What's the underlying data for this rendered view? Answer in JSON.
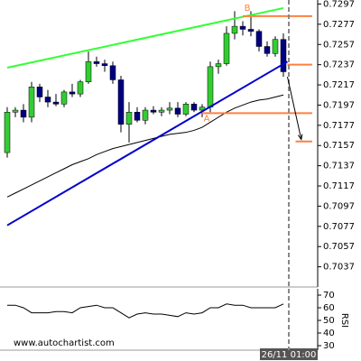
{
  "chart_data": {
    "type": "candlestick",
    "watermark": "www.autochartist.com",
    "x_label": "26/11 01:00",
    "up_color": "#33cc33",
    "down_color": "#000080",
    "open": [
      0.715,
      0.719,
      0.7192,
      0.7185,
      0.7215,
      0.7205,
      0.72,
      0.7198,
      0.721,
      0.7208,
      0.722,
      0.724,
      0.7238,
      0.7236,
      0.7222,
      0.7178,
      0.719,
      0.7182,
      0.7192,
      0.719,
      0.7192,
      0.7194,
      0.7188,
      0.7198,
      0.7192,
      0.7195,
      0.7235,
      0.7238,
      0.7268,
      0.7275,
      0.7272,
      0.727,
      0.7255,
      0.7248,
      0.7262
    ],
    "high": [
      0.7195,
      0.7195,
      0.7198,
      0.722,
      0.7218,
      0.7212,
      0.7208,
      0.7212,
      0.7218,
      0.7222,
      0.725,
      0.7245,
      0.7242,
      0.724,
      0.7226,
      0.72,
      0.7195,
      0.7195,
      0.7196,
      0.7195,
      0.72,
      0.72,
      0.72,
      0.72,
      0.7198,
      0.724,
      0.7242,
      0.7275,
      0.729,
      0.728,
      0.729,
      0.7272,
      0.726,
      0.7265,
      0.7268
    ],
    "low": [
      0.7145,
      0.7185,
      0.718,
      0.718,
      0.72,
      0.7195,
      0.7196,
      0.7195,
      0.7205,
      0.7205,
      0.7218,
      0.7235,
      0.723,
      0.7218,
      0.717,
      0.716,
      0.718,
      0.7178,
      0.7188,
      0.7186,
      0.7188,
      0.7185,
      0.7186,
      0.719,
      0.7185,
      0.719,
      0.7228,
      0.7236,
      0.7262,
      0.7266,
      0.7265,
      0.725,
      0.7245,
      0.7245,
      0.7225
    ],
    "close": [
      0.719,
      0.7192,
      0.7185,
      0.7215,
      0.7205,
      0.72,
      0.7198,
      0.721,
      0.7208,
      0.722,
      0.724,
      0.7238,
      0.7236,
      0.7222,
      0.7178,
      0.719,
      0.7182,
      0.7192,
      0.719,
      0.7192,
      0.7194,
      0.7188,
      0.7198,
      0.7192,
      0.7195,
      0.7235,
      0.7238,
      0.7268,
      0.7275,
      0.7272,
      0.727,
      0.7255,
      0.7248,
      0.7262,
      0.723
    ],
    "ma": {
      "color": "#000000",
      "values": [
        0.7106,
        0.711,
        0.7114,
        0.7118,
        0.7122,
        0.7126,
        0.713,
        0.7134,
        0.7138,
        0.7141,
        0.7144,
        0.7148,
        0.7151,
        0.7154,
        0.7156,
        0.7158,
        0.716,
        0.7162,
        0.7164,
        0.7166,
        0.7168,
        0.7169,
        0.717,
        0.7172,
        0.7175,
        0.718,
        0.7185,
        0.719,
        0.7194,
        0.7197,
        0.72,
        0.7202,
        0.7203,
        0.7205,
        0.7207
      ]
    },
    "trend_lines": [
      {
        "color": "#33ff33",
        "x": [
          0,
          34
        ],
        "values": [
          0.7234,
          0.7293
        ]
      },
      {
        "color": "#0000cc",
        "x": [
          0,
          34.5
        ],
        "values": [
          0.7078,
          0.724
        ]
      }
    ],
    "levels": [
      {
        "color": "#ff8040",
        "start": 29,
        "value": 0.7285,
        "label": "B"
      },
      {
        "color": "#ff8040",
        "start": 34.5,
        "value": 0.7237
      },
      {
        "color": "#ff8040",
        "start": 24,
        "value": 0.7189,
        "label": "A"
      },
      {
        "color": "#ff8040",
        "start": 35.5,
        "value": 0.7161
      }
    ],
    "forecast": {
      "color": "#000000",
      "x": [
        34.5,
        36.2
      ],
      "values": [
        0.7225,
        0.7163
      ]
    },
    "ylim": [
      0.7017,
      0.7301
    ],
    "yticks": [
      0.7297,
      0.7277,
      0.7257,
      0.7237,
      0.7217,
      0.7197,
      0.7177,
      0.7157,
      0.7137,
      0.7117,
      0.7097,
      0.7077,
      0.7057,
      0.7037
    ],
    "rsi": {
      "label": "RSI",
      "color": "#000000",
      "values": [
        62,
        62,
        60,
        56,
        56,
        56,
        57,
        57,
        56,
        60,
        61,
        62,
        60,
        60,
        56,
        52,
        55,
        56,
        55,
        55,
        54,
        53,
        56,
        55,
        56,
        60,
        60,
        63,
        62,
        62,
        60,
        60,
        60,
        60,
        63
      ],
      "ylim": [
        30,
        70
      ],
      "yticks": [
        70,
        60,
        50,
        40,
        30
      ]
    }
  }
}
